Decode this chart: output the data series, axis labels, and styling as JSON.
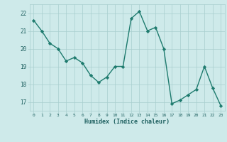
{
  "x": [
    0,
    1,
    2,
    3,
    4,
    5,
    6,
    7,
    8,
    9,
    10,
    11,
    12,
    13,
    14,
    15,
    16,
    17,
    18,
    19,
    20,
    21,
    22,
    23
  ],
  "y": [
    21.6,
    21.0,
    20.3,
    20.0,
    19.3,
    19.5,
    19.2,
    18.5,
    18.1,
    18.4,
    19.0,
    19.0,
    21.7,
    22.1,
    21.0,
    21.2,
    20.0,
    16.9,
    17.1,
    17.4,
    17.7,
    19.0,
    17.8,
    16.8
  ],
  "xlabel": "Humidex (Indice chaleur)",
  "ylim": [
    16.5,
    22.5
  ],
  "xlim": [
    -0.5,
    23.5
  ],
  "yticks": [
    17,
    18,
    19,
    20,
    21,
    22
  ],
  "xticks": [
    0,
    1,
    2,
    3,
    4,
    5,
    6,
    7,
    8,
    9,
    10,
    11,
    12,
    13,
    14,
    15,
    16,
    17,
    18,
    19,
    20,
    21,
    22,
    23
  ],
  "line_color": "#1e7b6e",
  "marker_color": "#1e7b6e",
  "bg_color": "#ceeaea",
  "grid_color": "#a8cece",
  "tick_label_color": "#1e6060",
  "xlabel_color": "#1e6060"
}
